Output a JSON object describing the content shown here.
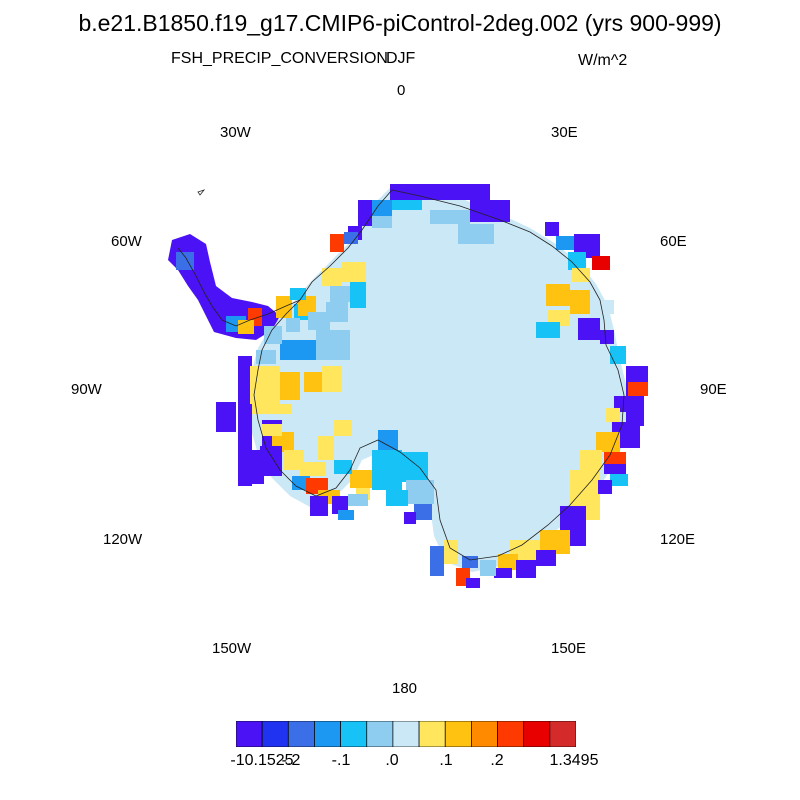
{
  "title": "b.e21.B1850.f19_g17.CMIP6-piControl-2deg.002 (yrs 900-999)",
  "variable": "FSH_PRECIP_CONVERSION",
  "season": "DJF",
  "units": "W/m^2",
  "longitude_labels": {
    "n0": "0",
    "n30e": "30E",
    "n60e": "60E",
    "n90e": "90E",
    "n120e": "120E",
    "n150e": "150E",
    "n180": "180",
    "n150w": "150W",
    "n120w": "120W",
    "n90w": "90W",
    "n60w": "60W",
    "n30w": "30W"
  },
  "colorbar": {
    "colors": [
      "#4b12f5",
      "#1f33f0",
      "#3a6fe8",
      "#1c97f2",
      "#17c2f6",
      "#8fcdf0",
      "#cbe8f6",
      "#ffe65c",
      "#ffc211",
      "#ff8a00",
      "#ff3a00",
      "#e80000",
      "#d52a2a"
    ],
    "labels": [
      "-10.1525",
      "-.2",
      "-.1",
      ".0",
      ".1",
      ".2",
      "1.3495"
    ]
  },
  "map": {
    "interior_color": "#cbe8f6"
  }
}
